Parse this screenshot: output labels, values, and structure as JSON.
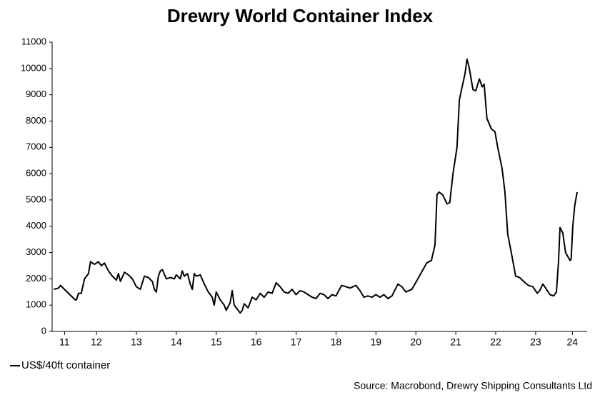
{
  "chart_data": {
    "type": "line",
    "title": "Drewry World Container Index",
    "source": "Source: Macrobond, Drewry Shipping Consultants Ltd",
    "series": [
      {
        "name": "US$/40ft container",
        "color": "#000000",
        "x": [
          11.43,
          11.55,
          11.6,
          11.7,
          11.8,
          11.9,
          11.97,
          12.0,
          12.05,
          12.12,
          12.2,
          12.3,
          12.35,
          12.45,
          12.55,
          12.62,
          12.7,
          12.8,
          12.9,
          13.0,
          13.05,
          13.1,
          13.2,
          13.3,
          13.4,
          13.5,
          13.6,
          13.7,
          13.8,
          13.9,
          13.95,
          14.0,
          14.05,
          14.1,
          14.15,
          14.25,
          14.35,
          14.45,
          14.5,
          14.6,
          14.65,
          14.7,
          14.78,
          14.85,
          14.9,
          14.95,
          15.0,
          15.1,
          15.2,
          15.3,
          15.4,
          15.45,
          15.5,
          15.6,
          15.7,
          15.75,
          15.85,
          15.9,
          15.95,
          16.0,
          16.1,
          16.15,
          16.2,
          16.3,
          16.4,
          16.5,
          16.6,
          16.7,
          16.8,
          16.9,
          17.0,
          17.1,
          17.2,
          17.3,
          17.4,
          17.5,
          17.6,
          17.7,
          17.8,
          17.9,
          18.0,
          18.1,
          18.2,
          18.3,
          18.4,
          18.5,
          18.64,
          18.75,
          18.85,
          19.0,
          19.1,
          19.2,
          19.3,
          19.4,
          19.5,
          19.6,
          19.7,
          19.8,
          19.9,
          20.05,
          20.15,
          20.25,
          20.4,
          20.55,
          20.77,
          20.89,
          20.98,
          21.03,
          21.08,
          21.17,
          21.28,
          21.35,
          21.43,
          21.53,
          21.59,
          21.66,
          21.73,
          21.78,
          21.84,
          21.93,
          22.0,
          22.09,
          22.16,
          22.21,
          22.28,
          22.39,
          22.48,
          22.55,
          22.66,
          22.73,
          22.8,
          22.89,
          23.0,
          23.1,
          23.2,
          23.32,
          23.43,
          23.54,
          23.6,
          23.68,
          23.75,
          23.86,
          23.95,
          24.02,
          24.07,
          24.11,
          24.18,
          24.25,
          24.36,
          24.39,
          24.43,
          24.48,
          24.54
        ],
        "values": [
          1600,
          1650,
          1750,
          1600,
          1450,
          1300,
          1200,
          1200,
          1450,
          1450,
          2000,
          2200,
          2650,
          2550,
          2650,
          2500,
          2600,
          2300,
          2100,
          1950,
          2200,
          1900,
          2250,
          2150,
          2000,
          1700,
          1600,
          2100,
          2050,
          1900,
          1600,
          1500,
          2100,
          2300,
          2350,
          2000,
          2050,
          2000,
          2150,
          2000,
          2300,
          2100,
          2200,
          1800,
          1600,
          2200,
          2100,
          2150,
          1800,
          1500,
          1300,
          1000,
          1500,
          1200,
          1000,
          800,
          1100,
          1550,
          1000,
          900,
          700,
          800,
          1050,
          900,
          1300,
          1200,
          1450,
          1300,
          1500,
          1450,
          1850,
          1700,
          1500,
          1450,
          1600,
          1400,
          1550,
          1500,
          1400,
          1300,
          1250,
          1450,
          1400,
          1250,
          1400,
          1350,
          1750,
          1700,
          1650,
          1750,
          1550,
          1300,
          1350,
          1300,
          1400,
          1300,
          1400,
          1250,
          1350,
          1800,
          1700,
          1500,
          1600,
          2000,
          2600,
          2700,
          3300,
          5200,
          5300,
          5200,
          4850,
          4900,
          6000,
          7000,
          8800,
          9300,
          9800,
          10350,
          10000,
          9200,
          9150,
          9600,
          9300,
          9400,
          8100,
          7700,
          7600,
          7000,
          6200,
          5300,
          3700,
          3000,
          2100,
          2050,
          1900,
          1750,
          1700,
          1450,
          1550,
          1800,
          1650,
          1400,
          1350,
          1500,
          2600,
          3950,
          3750,
          3000,
          2700,
          2750,
          4000,
          4800,
          5300
        ]
      }
    ],
    "xlim": [
      11.39,
      24.79
    ],
    "xticks": [
      {
        "value": 11.7,
        "label": "11"
      },
      {
        "value": 12.5,
        "label": "12"
      },
      {
        "value": 13.5,
        "label": "13"
      },
      {
        "value": 14.5,
        "label": "14"
      },
      {
        "value": 15.5,
        "label": "15"
      },
      {
        "value": 16.5,
        "label": "16"
      },
      {
        "value": 17.5,
        "label": "17"
      },
      {
        "value": 18.5,
        "label": "18"
      },
      {
        "value": 19.5,
        "label": "19"
      },
      {
        "value": 20.5,
        "label": "20"
      },
      {
        "value": 21.5,
        "label": "21"
      },
      {
        "value": 22.5,
        "label": "22"
      },
      {
        "value": 23.5,
        "label": "23"
      },
      {
        "value": 24.42,
        "label": "24"
      }
    ],
    "ylim": [
      0,
      11000
    ],
    "yticks": [
      0,
      1000,
      2000,
      3000,
      4000,
      5000,
      6000,
      7000,
      8000,
      9000,
      10000,
      11000
    ]
  }
}
